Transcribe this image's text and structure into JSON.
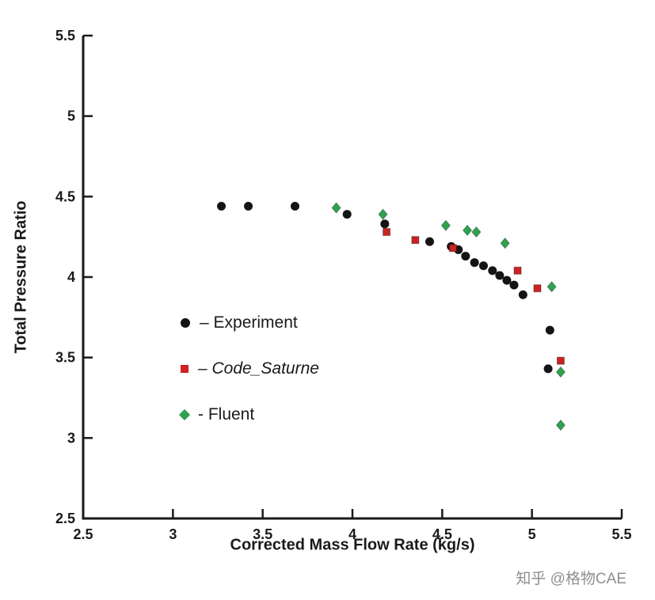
{
  "figure": {
    "background": "#ffffff"
  },
  "chart_data": {
    "type": "scatter",
    "title": "",
    "xlabel": "Corrected Mass Flow Rate (kg/s)",
    "ylabel": "Total Pressure Ratio",
    "xlim": [
      2.5,
      5.5
    ],
    "ylim": [
      2.5,
      5.5
    ],
    "x_ticks": [
      2.5,
      3,
      3.5,
      4,
      4.5,
      5,
      5.5
    ],
    "y_ticks": [
      2.5,
      3,
      3.5,
      4,
      4.5,
      5,
      5.5
    ],
    "x_tick_labels": [
      "2.5",
      "3",
      "3.5",
      "4",
      "4.5",
      "5",
      "5.5"
    ],
    "y_tick_labels": [
      "2.5",
      "3",
      "3.5",
      "4",
      "4.5",
      "5",
      "5.5"
    ],
    "grid": false,
    "legend_position": "inside-center-left",
    "axis_color": "#1a1a1a",
    "series": [
      {
        "name": "Experiment",
        "legend_label": "– Experiment",
        "marker": "circle",
        "color": "#141414",
        "points": [
          [
            3.27,
            4.44
          ],
          [
            3.42,
            4.44
          ],
          [
            3.68,
            4.44
          ],
          [
            3.97,
            4.39
          ],
          [
            4.18,
            4.33
          ],
          [
            4.43,
            4.22
          ],
          [
            4.55,
            4.19
          ],
          [
            4.59,
            4.17
          ],
          [
            4.63,
            4.13
          ],
          [
            4.68,
            4.09
          ],
          [
            4.73,
            4.07
          ],
          [
            4.78,
            4.04
          ],
          [
            4.82,
            4.01
          ],
          [
            4.86,
            3.98
          ],
          [
            4.9,
            3.95
          ],
          [
            4.95,
            3.89
          ],
          [
            5.1,
            3.67
          ],
          [
            5.09,
            3.43
          ]
        ]
      },
      {
        "name": "Code_Saturne",
        "legend_label": "– Code_Saturne",
        "marker": "square",
        "color": "#cc2222",
        "points": [
          [
            4.19,
            4.28
          ],
          [
            4.35,
            4.23
          ],
          [
            4.56,
            4.18
          ],
          [
            4.92,
            4.04
          ],
          [
            5.03,
            3.93
          ],
          [
            5.16,
            3.48
          ]
        ]
      },
      {
        "name": "Fluent",
        "legend_label": "- Fluent",
        "marker": "diamond",
        "color": "#2ea24e",
        "points": [
          [
            3.91,
            4.43
          ],
          [
            4.17,
            4.39
          ],
          [
            4.52,
            4.32
          ],
          [
            4.64,
            4.29
          ],
          [
            4.69,
            4.28
          ],
          [
            4.85,
            4.21
          ],
          [
            5.11,
            3.94
          ],
          [
            5.16,
            3.41
          ],
          [
            5.16,
            3.08
          ]
        ]
      }
    ]
  },
  "watermark": {
    "text": "知乎 @格物CAE"
  }
}
